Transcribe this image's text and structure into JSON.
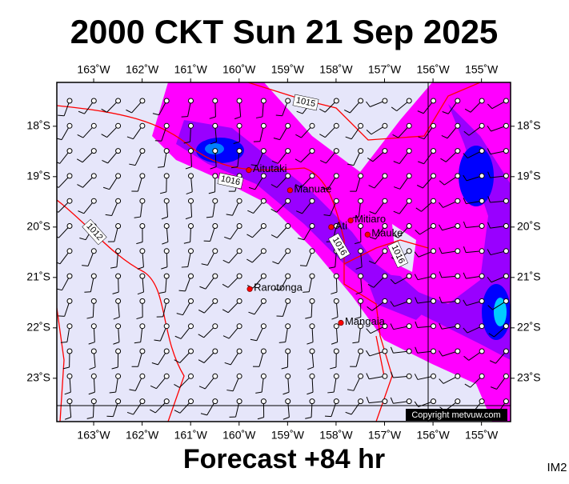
{
  "header": {
    "title": "2000 CKT Sun 21 Sep 2025"
  },
  "footer": {
    "forecast": "Forecast +84 hr",
    "code": "IM2"
  },
  "map": {
    "lon_range": [
      -163.76,
      -154.4
    ],
    "lat_range": [
      -17.13,
      -23.86
    ],
    "lon_ticks": [
      {
        "value": -163,
        "label": "163˚W"
      },
      {
        "value": -162,
        "label": "162˚W"
      },
      {
        "value": -161,
        "label": "161˚W"
      },
      {
        "value": -160,
        "label": "160˚W"
      },
      {
        "value": -159,
        "label": "159˚W"
      },
      {
        "value": -158,
        "label": "158˚W"
      },
      {
        "value": -157,
        "label": "157˚W"
      },
      {
        "value": -156,
        "label": "156˚W"
      },
      {
        "value": -155,
        "label": "155˚W"
      }
    ],
    "lat_ticks": [
      {
        "value": -18,
        "label": "18˚S"
      },
      {
        "value": -19,
        "label": "19˚S"
      },
      {
        "value": -20,
        "label": "20˚S"
      },
      {
        "value": -21,
        "label": "21˚S"
      },
      {
        "value": -22,
        "label": "22˚S"
      },
      {
        "value": -23,
        "label": "23˚S"
      }
    ],
    "places": [
      {
        "name": "Aitutaki",
        "lon": -159.8,
        "lat": -18.87
      },
      {
        "name": "Manuae",
        "lon": -158.95,
        "lat": -19.27
      },
      {
        "name": "Mitiaro",
        "lon": -157.7,
        "lat": -19.87
      },
      {
        "name": "Ati",
        "lon": -158.1,
        "lat": -20.0
      },
      {
        "name": "Mauke",
        "lon": -157.35,
        "lat": -20.15
      },
      {
        "name": "Rarotonga",
        "lon": -159.78,
        "lat": -21.23
      },
      {
        "name": "Mangaia",
        "lon": -157.9,
        "lat": -21.9
      }
    ],
    "isobar_labels": [
      "1015",
      "1016",
      "1012",
      "1016",
      "1016"
    ],
    "copyright": "Copyright metvuw.com"
  }
}
